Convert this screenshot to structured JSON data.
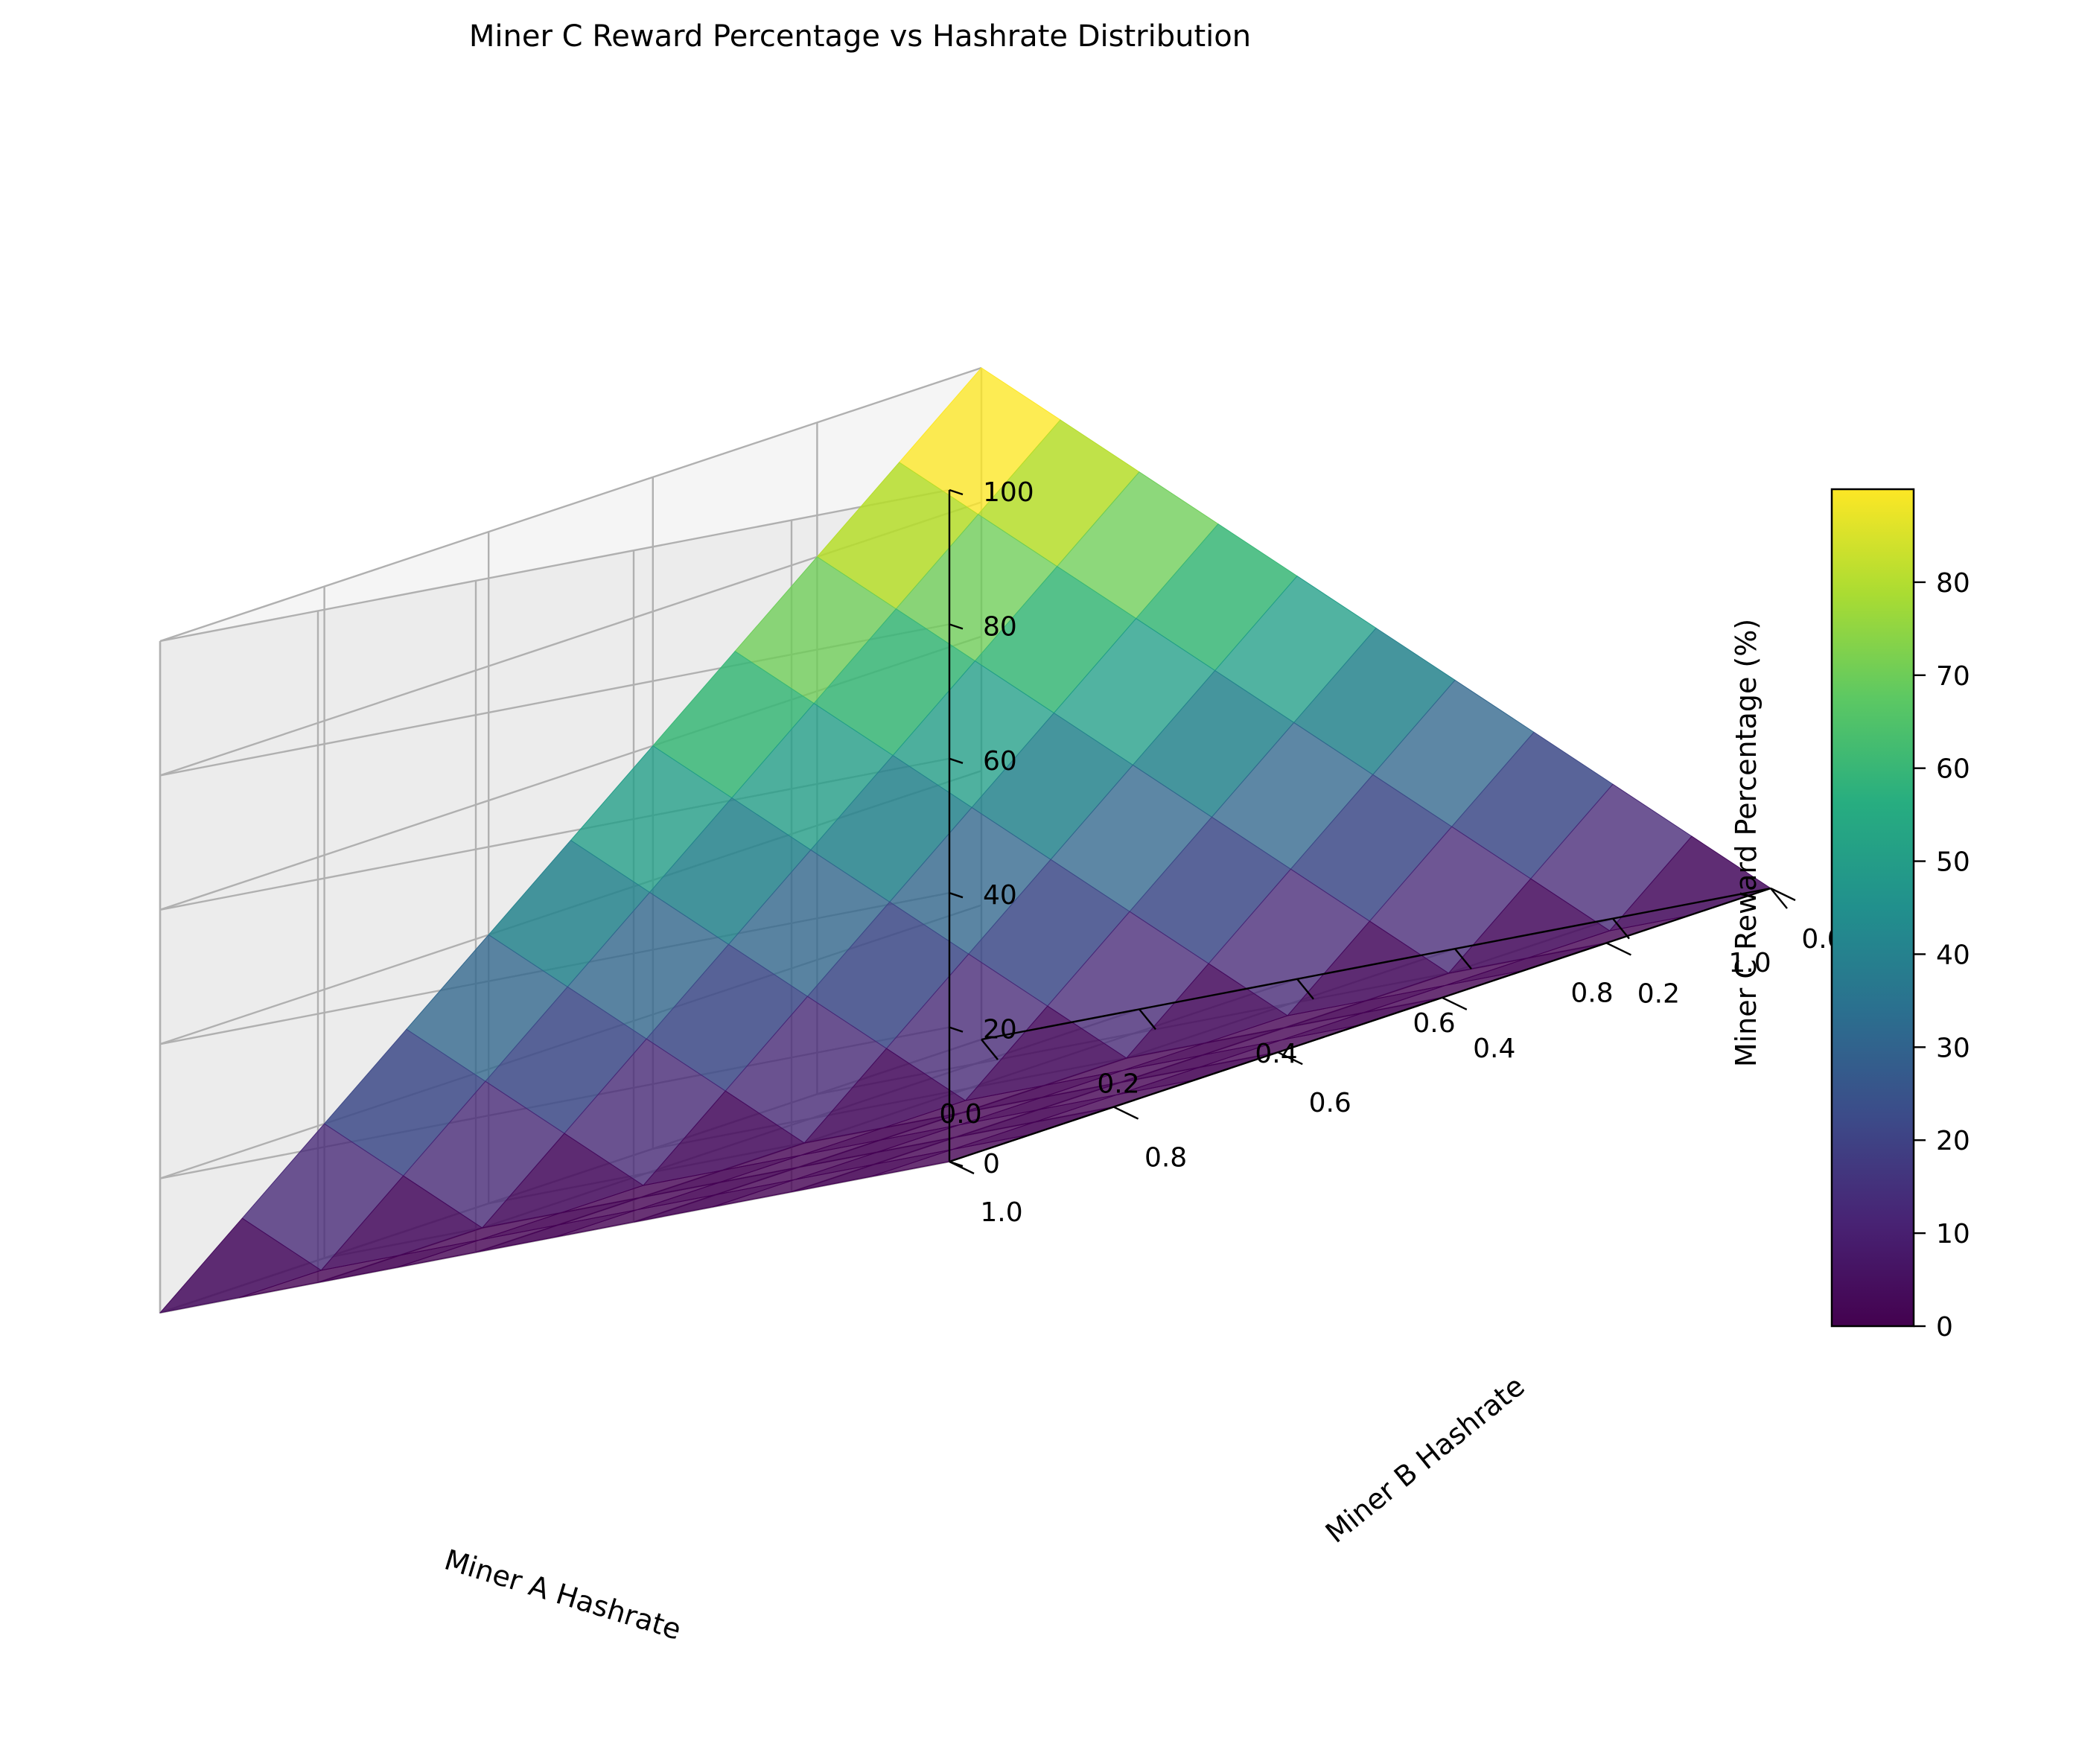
{
  "chart_data": {
    "type": "surface3d",
    "title": "Miner C Reward Percentage vs Hashrate Distribution",
    "xlabel": "Miner A Hashrate",
    "ylabel": "Miner B Hashrate",
    "zlabel": "Miner C Reward Percentage (%)",
    "xlim": [
      0,
      1
    ],
    "ylim": [
      0,
      1
    ],
    "zlim": [
      0,
      100
    ],
    "x_ticks": [
      "0.0",
      "0.2",
      "0.4",
      "0.6",
      "0.8",
      "1.0"
    ],
    "y_ticks": [
      "0.0",
      "0.2",
      "0.4",
      "0.6",
      "0.8",
      "1.0"
    ],
    "z_ticks": [
      "0",
      "20",
      "40",
      "60",
      "80",
      "100"
    ],
    "colorbar": {
      "colormap": "viridis",
      "range": [
        0,
        90
      ],
      "ticks": [
        "0",
        "10",
        "20",
        "30",
        "40",
        "50",
        "60",
        "70",
        "80"
      ]
    },
    "grid": true,
    "surface": {
      "x": [
        0.0,
        0.1,
        0.2,
        0.3,
        0.4,
        0.5,
        0.6,
        0.7,
        0.8,
        0.9,
        1.0
      ],
      "y": [
        0.0,
        0.1,
        0.2,
        0.3,
        0.4,
        0.5,
        0.6,
        0.7,
        0.8,
        0.9,
        1.0
      ],
      "z_formula": "max(0, 1 - x - y) * 100"
    }
  }
}
